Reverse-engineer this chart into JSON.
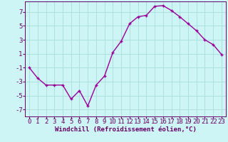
{
  "x": [
    0,
    1,
    2,
    3,
    4,
    5,
    6,
    7,
    8,
    9,
    10,
    11,
    12,
    13,
    14,
    15,
    16,
    17,
    18,
    19,
    20,
    21,
    22,
    23
  ],
  "y": [
    -1.0,
    -2.5,
    -3.5,
    -3.5,
    -3.5,
    -5.5,
    -4.3,
    -6.5,
    -3.5,
    -2.2,
    1.2,
    2.8,
    5.3,
    6.3,
    6.5,
    7.8,
    7.9,
    7.2,
    6.3,
    5.3,
    4.3,
    3.0,
    2.3,
    0.9
  ],
  "line_color": "#990099",
  "marker": "+",
  "bg_color": "#cef5f5",
  "grid_color": "#aadddd",
  "axis_color": "#660066",
  "xlabel": "Windchill (Refroidissement éolien,°C)",
  "ylim": [
    -8,
    8.5
  ],
  "yticks": [
    -7,
    -5,
    -3,
    -1,
    1,
    3,
    5,
    7
  ],
  "xlim": [
    -0.5,
    23.5
  ],
  "xticks": [
    0,
    1,
    2,
    3,
    4,
    5,
    6,
    7,
    8,
    9,
    10,
    11,
    12,
    13,
    14,
    15,
    16,
    17,
    18,
    19,
    20,
    21,
    22,
    23
  ],
  "xlabel_fontsize": 6.5,
  "tick_fontsize": 6.5,
  "linewidth": 1.0,
  "markersize": 3.5,
  "markeredgewidth": 1.0
}
